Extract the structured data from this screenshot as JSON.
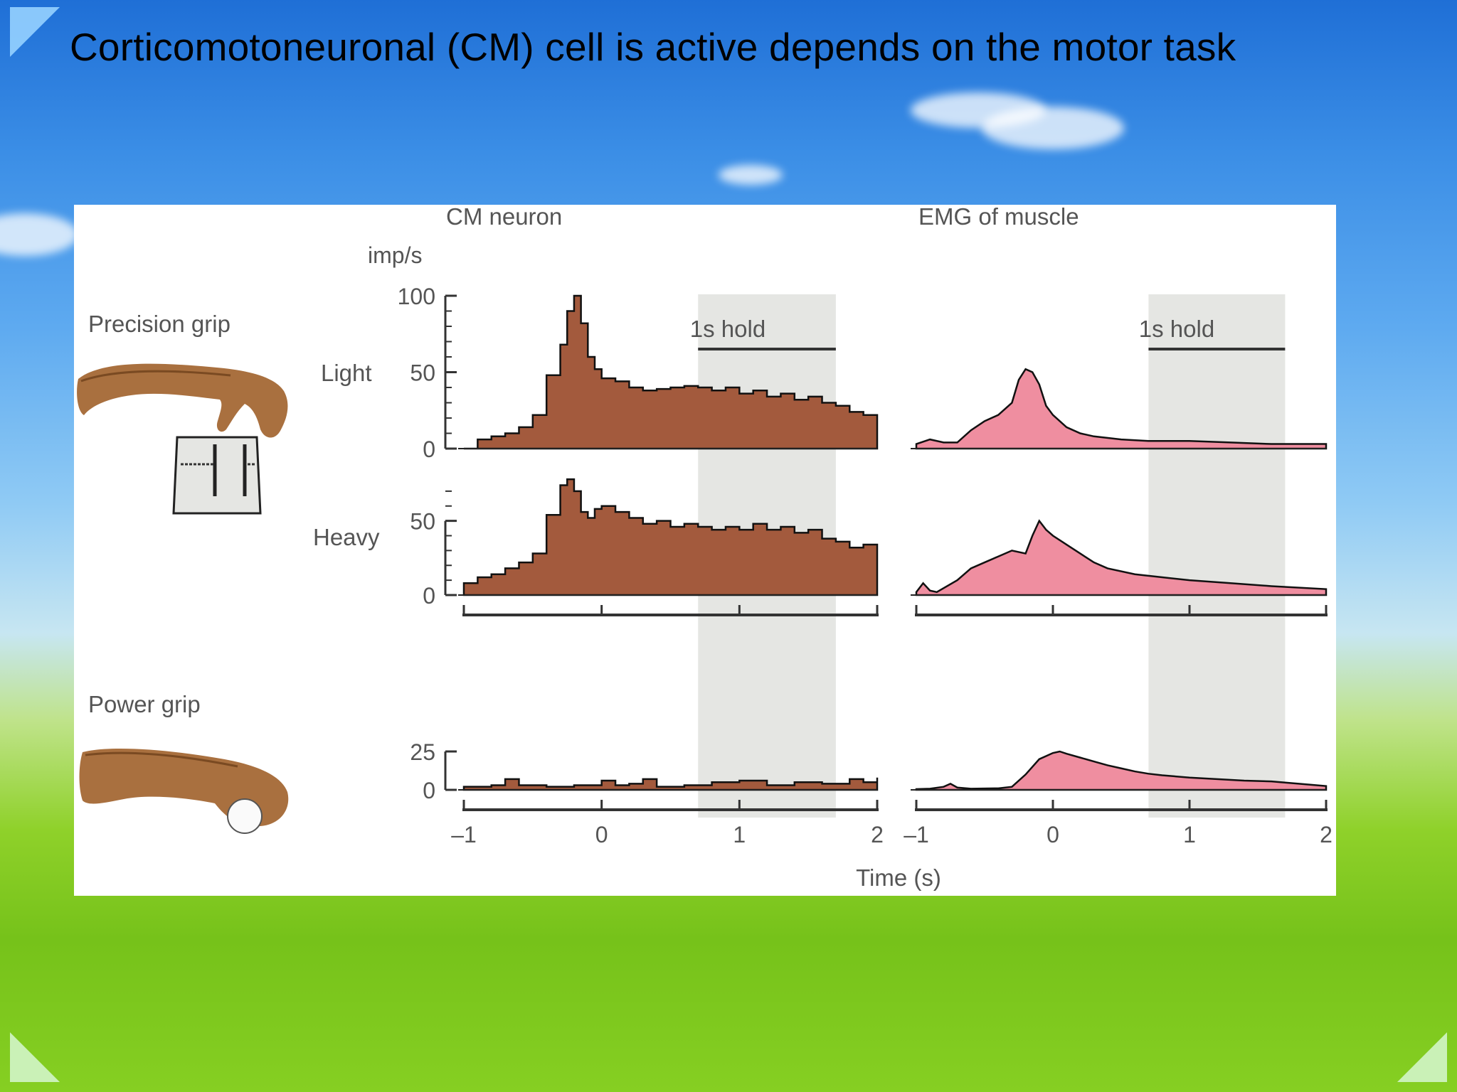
{
  "slide": {
    "title": "Corticomotoneuronal (CM) cell is active depends on the motor task"
  },
  "figure": {
    "column_titles": {
      "cm": "CM neuron",
      "emg": "EMG of muscle"
    },
    "row_labels": {
      "precision_grip": "Precision grip",
      "light": "Light",
      "heavy": "Heavy",
      "power_grip": "Power grip"
    },
    "y_unit": "imp/s",
    "hold_label": "1s hold",
    "x_axis_label": "Time (s)",
    "colors": {
      "cm_fill": "#A35A3D",
      "emg_fill": "#EF8EA0",
      "hold_shade": "#E5E6E3",
      "hand": "#A9703F"
    }
  },
  "chart_data": [
    {
      "type": "area",
      "panel": "CM neuron - precision grip light",
      "ylabel": "imp/s",
      "y_ticks": [
        "0",
        "50",
        "100"
      ],
      "ylim": [
        0,
        100
      ],
      "xlim": [
        -1,
        2
      ],
      "hold_window": [
        0.7,
        1.7
      ],
      "x": [
        -1.0,
        -0.9,
        -0.8,
        -0.7,
        -0.6,
        -0.5,
        -0.4,
        -0.3,
        -0.25,
        -0.2,
        -0.15,
        -0.1,
        -0.05,
        0.0,
        0.1,
        0.2,
        0.3,
        0.4,
        0.5,
        0.6,
        0.7,
        0.8,
        0.9,
        1.0,
        1.1,
        1.2,
        1.3,
        1.4,
        1.5,
        1.6,
        1.7,
        1.8,
        1.9,
        2.0
      ],
      "y": [
        0,
        6,
        8,
        10,
        14,
        22,
        48,
        68,
        90,
        100,
        82,
        60,
        52,
        46,
        44,
        40,
        38,
        39,
        40,
        41,
        40,
        38,
        40,
        36,
        38,
        34,
        36,
        32,
        34,
        30,
        28,
        24,
        22,
        10
      ]
    },
    {
      "type": "area",
      "panel": "CM neuron - precision grip heavy",
      "ylabel": "imp/s",
      "y_ticks": [
        "0",
        "50"
      ],
      "ylim": [
        0,
        80
      ],
      "xlim": [
        -1,
        2
      ],
      "hold_window": [
        0.7,
        1.7
      ],
      "x": [
        -1.0,
        -0.9,
        -0.8,
        -0.7,
        -0.6,
        -0.5,
        -0.4,
        -0.3,
        -0.25,
        -0.2,
        -0.15,
        -0.1,
        -0.05,
        0.0,
        0.1,
        0.2,
        0.3,
        0.4,
        0.5,
        0.6,
        0.7,
        0.8,
        0.9,
        1.0,
        1.1,
        1.2,
        1.3,
        1.4,
        1.5,
        1.6,
        1.7,
        1.8,
        1.9,
        2.0
      ],
      "y": [
        8,
        12,
        14,
        18,
        22,
        28,
        54,
        74,
        78,
        70,
        56,
        52,
        58,
        60,
        56,
        52,
        48,
        50,
        46,
        48,
        46,
        44,
        46,
        44,
        48,
        44,
        46,
        42,
        44,
        38,
        36,
        32,
        34,
        24
      ]
    },
    {
      "type": "area",
      "panel": "CM neuron - power grip",
      "ylabel": "imp/s",
      "y_ticks": [
        "0",
        "25"
      ],
      "ylim": [
        0,
        25
      ],
      "xlim": [
        -1,
        2
      ],
      "hold_window": [
        0.7,
        1.7
      ],
      "x": [
        -1.0,
        -0.8,
        -0.7,
        -0.6,
        -0.4,
        -0.2,
        0.0,
        0.1,
        0.2,
        0.3,
        0.4,
        0.6,
        0.8,
        1.0,
        1.2,
        1.4,
        1.6,
        1.8,
        1.9,
        2.0
      ],
      "y": [
        2,
        3,
        7,
        3,
        2,
        3,
        6,
        3,
        4,
        7,
        2,
        3,
        5,
        6,
        3,
        5,
        4,
        7,
        5,
        8
      ]
    },
    {
      "type": "area",
      "panel": "EMG of muscle - precision grip light",
      "xlim": [
        -1,
        2
      ],
      "ylim": [
        0,
        100
      ],
      "hold_window": [
        0.7,
        1.7
      ],
      "x": [
        -1.0,
        -0.9,
        -0.8,
        -0.7,
        -0.6,
        -0.5,
        -0.4,
        -0.3,
        -0.25,
        -0.2,
        -0.15,
        -0.1,
        -0.05,
        0.0,
        0.1,
        0.2,
        0.3,
        0.5,
        0.7,
        1.0,
        1.3,
        1.6,
        2.0
      ],
      "y": [
        3,
        6,
        4,
        4,
        12,
        18,
        22,
        30,
        45,
        52,
        50,
        42,
        28,
        22,
        14,
        10,
        8,
        6,
        5,
        5,
        4,
        3,
        3
      ]
    },
    {
      "type": "area",
      "panel": "EMG of muscle - precision grip heavy",
      "xlim": [
        -1,
        2
      ],
      "ylim": [
        0,
        80
      ],
      "hold_window": [
        0.7,
        1.7
      ],
      "x": [
        -1.0,
        -0.95,
        -0.9,
        -0.85,
        -0.7,
        -0.6,
        -0.5,
        -0.4,
        -0.3,
        -0.2,
        -0.15,
        -0.1,
        -0.05,
        0.0,
        0.1,
        0.2,
        0.3,
        0.4,
        0.6,
        0.8,
        1.0,
        1.3,
        1.6,
        2.0
      ],
      "y": [
        2,
        8,
        3,
        2,
        10,
        18,
        22,
        26,
        30,
        28,
        40,
        50,
        44,
        40,
        34,
        28,
        22,
        18,
        14,
        12,
        10,
        8,
        6,
        4
      ]
    },
    {
      "type": "area",
      "panel": "EMG of muscle - power grip",
      "xlim": [
        -1,
        2
      ],
      "ylim": [
        0,
        100
      ],
      "hold_window": [
        0.7,
        1.7
      ],
      "x": [
        -1.0,
        -0.9,
        -0.8,
        -0.75,
        -0.7,
        -0.6,
        -0.4,
        -0.3,
        -0.2,
        -0.1,
        0.0,
        0.05,
        0.1,
        0.2,
        0.3,
        0.4,
        0.5,
        0.6,
        0.7,
        0.8,
        1.0,
        1.2,
        1.4,
        1.6,
        1.8,
        2.0
      ],
      "y": [
        2,
        3,
        8,
        16,
        6,
        3,
        4,
        8,
        40,
        80,
        96,
        100,
        94,
        84,
        74,
        64,
        56,
        48,
        42,
        38,
        32,
        28,
        24,
        22,
        16,
        10
      ]
    }
  ],
  "x_axis": {
    "cm_ticks": [
      "–1",
      "0",
      "1",
      "2"
    ],
    "emg_ticks": [
      "–1",
      "0",
      "1",
      "2"
    ]
  }
}
